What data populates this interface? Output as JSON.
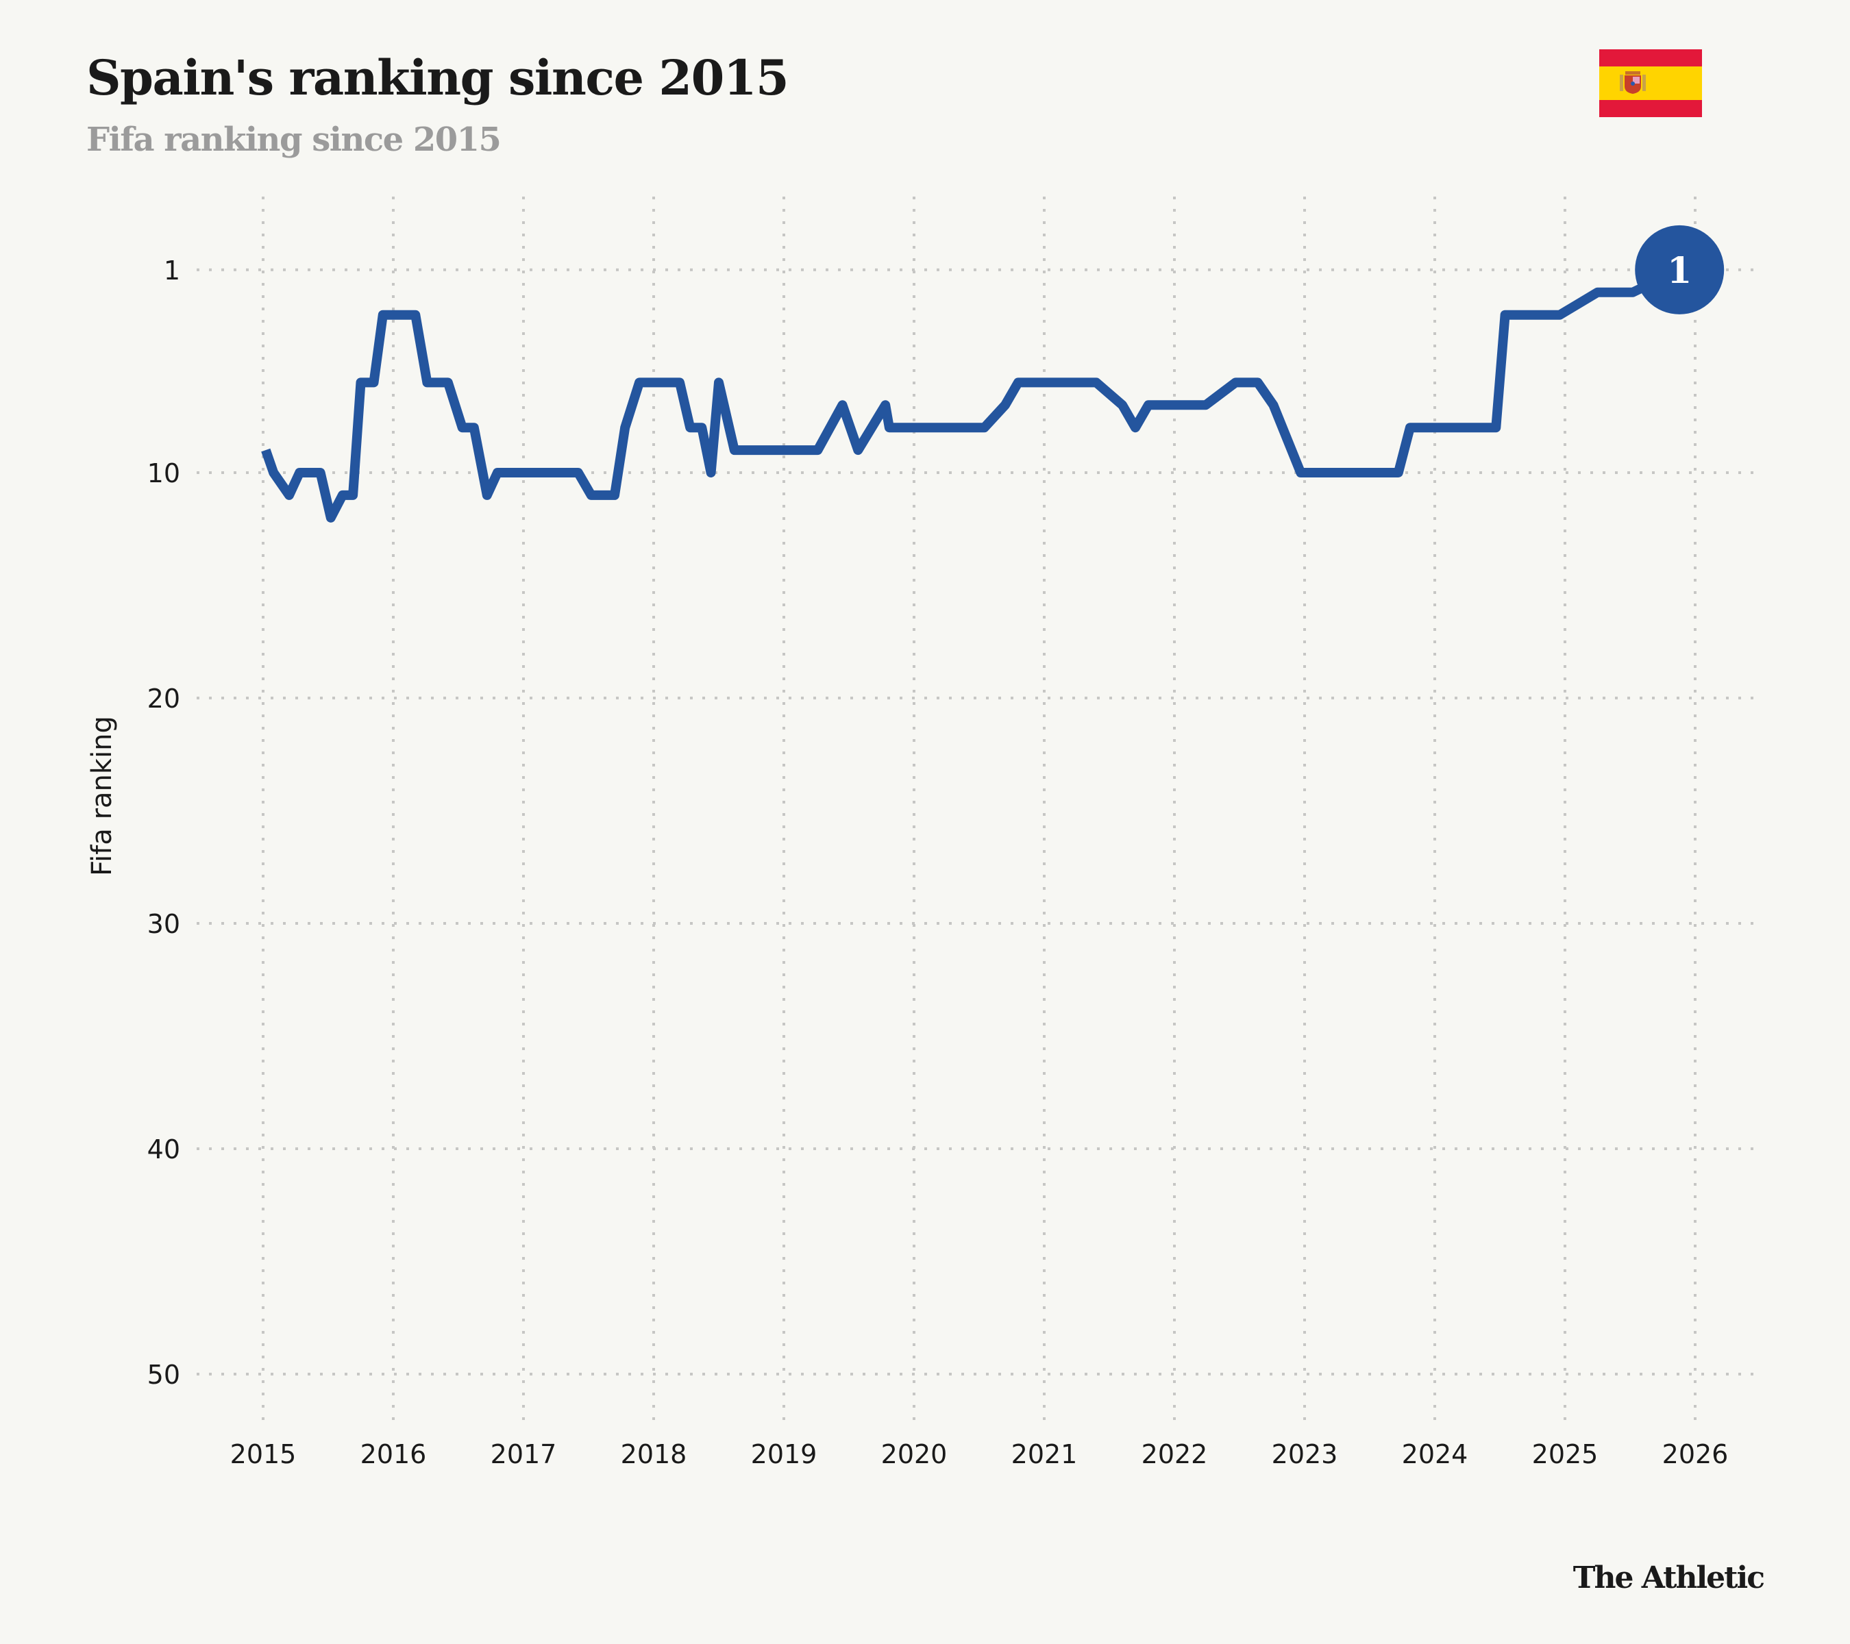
{
  "header": {
    "title": "Spain's ranking since 2015",
    "subtitle": "Fifa ranking since 2015",
    "flag_icon": "spain-flag-icon"
  },
  "colors": {
    "background": "#f7f7f3",
    "line": "#24559e",
    "grid": "#c6c6c4",
    "title": "#1a1a1a",
    "subtitle": "#9b9b9b",
    "flag_red": "#e3183a",
    "flag_yellow": "#ffd400"
  },
  "chart_data": {
    "type": "line",
    "title": "Spain's ranking since 2015",
    "subtitle": "Fifa ranking since 2015",
    "xlabel": "",
    "ylabel": "Fifa ranking",
    "xlim": [
      2015,
      2026
    ],
    "ylim": [
      0,
      50
    ],
    "y_inverted": true,
    "grid": true,
    "x_ticks": [
      "2015",
      "2016",
      "2017",
      "2018",
      "2019",
      "2020",
      "2021",
      "2022",
      "2023",
      "2024",
      "2025",
      "2026"
    ],
    "y_ticks": [
      "1",
      "10",
      "20",
      "30",
      "40",
      "50"
    ],
    "series": [
      {
        "name": "Spain",
        "x": [
          2015.02,
          2015.08,
          2015.2,
          2015.28,
          2015.44,
          2015.52,
          2015.61,
          2015.69,
          2015.75,
          2015.85,
          2015.92,
          2016.17,
          2016.26,
          2016.42,
          2016.53,
          2016.62,
          2016.72,
          2016.8,
          2017.42,
          2017.52,
          2017.7,
          2017.78,
          2017.89,
          2018.2,
          2018.28,
          2018.37,
          2018.44,
          2018.5,
          2018.62,
          2019.26,
          2019.45,
          2019.57,
          2019.78,
          2019.81,
          2020.54,
          2020.7,
          2020.8,
          2021.4,
          2021.6,
          2021.7,
          2021.8,
          2022.24,
          2022.47,
          2022.64,
          2022.76,
          2022.97,
          2023.72,
          2023.81,
          2024.47,
          2024.54,
          2024.96,
          2025.25,
          2025.52,
          2025.88
        ],
        "values": [
          9,
          10,
          11,
          10,
          10,
          12,
          11,
          11,
          6,
          6,
          3,
          3,
          6,
          6,
          8,
          8,
          11,
          10,
          10,
          11,
          11,
          8,
          6,
          6,
          8,
          8,
          10,
          6,
          9,
          9,
          7,
          9,
          7,
          8,
          8,
          7,
          6,
          6,
          7,
          8,
          7,
          7,
          6,
          6,
          7,
          10,
          10,
          8,
          8,
          3,
          3,
          2,
          2,
          1
        ]
      }
    ],
    "annotations": [
      {
        "type": "end-badge",
        "x": 2025.88,
        "value": 1,
        "label": "1"
      }
    ]
  },
  "footer": {
    "logo_text": "The Athletic"
  }
}
